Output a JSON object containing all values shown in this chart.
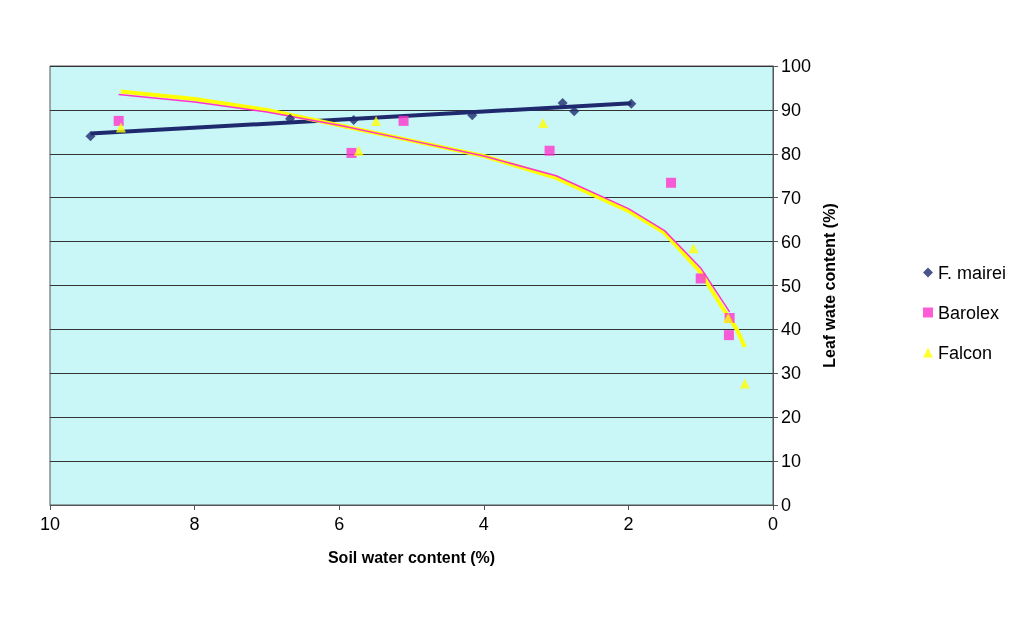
{
  "chart_data": {
    "type": "scatter",
    "xlabel": "Soil water content (%)",
    "ylabel": "Leaf wate content (%)",
    "xlim": [
      10,
      0
    ],
    "xticks": [
      10,
      8,
      6,
      4,
      2,
      0
    ],
    "ylim": [
      0,
      100
    ],
    "yticks": [
      0,
      10,
      20,
      30,
      40,
      50,
      60,
      70,
      80,
      90,
      100
    ],
    "grid": "y",
    "legend": "right",
    "series": [
      {
        "name": "F. mairei",
        "color": "#1f2a6e",
        "marker": "diamond",
        "x": [
          9.44,
          6.68,
          5.8,
          4.16,
          2.91,
          2.75,
          1.96
        ],
        "values": [
          84,
          88,
          87.7,
          88.8,
          91.6,
          89.7,
          91.4
        ]
      },
      {
        "name": "Barolex",
        "color": "#ff33cc",
        "marker": "square",
        "x": [
          9.05,
          5.83,
          5.11,
          3.09,
          1.41,
          1.0,
          0.6,
          0.61
        ],
        "values": [
          87.5,
          80.2,
          87.5,
          80.7,
          73.4,
          51.6,
          42.6,
          38.7
        ]
      },
      {
        "name": "Falcon",
        "color": "#ffff00",
        "marker": "triangle",
        "x": [
          9.02,
          5.73,
          5.49,
          3.18,
          1.1,
          0.62,
          0.39
        ],
        "values": [
          86,
          80.7,
          87.5,
          87,
          58.5,
          42.6,
          27.7
        ]
      },
      {
        "type": "line",
        "color": "#1f2a6e",
        "marker": "none",
        "x": [
          9.44,
          1.96
        ],
        "values": [
          84.6,
          91.5
        ]
      },
      {
        "type": "line",
        "color": "#ffff00",
        "marker": "none",
        "x": [
          9.02,
          8,
          7,
          6,
          5,
          4,
          3,
          2,
          1.5,
          1,
          0.7,
          0.5,
          0.39
        ],
        "values": [
          94.2,
          92.5,
          90,
          86.5,
          83,
          79.5,
          74.5,
          67,
          62,
          53,
          45,
          40,
          36
        ]
      },
      {
        "type": "line",
        "color": "#ff33cc",
        "marker": "none",
        "x": [
          9.05,
          8,
          7,
          6,
          5,
          4,
          3,
          2,
          1.5,
          1,
          0.8,
          0.6
        ],
        "values": [
          93.5,
          91.8,
          89.5,
          86.5,
          83,
          79.5,
          75,
          67.5,
          62.5,
          54,
          49,
          44
        ]
      }
    ]
  }
}
